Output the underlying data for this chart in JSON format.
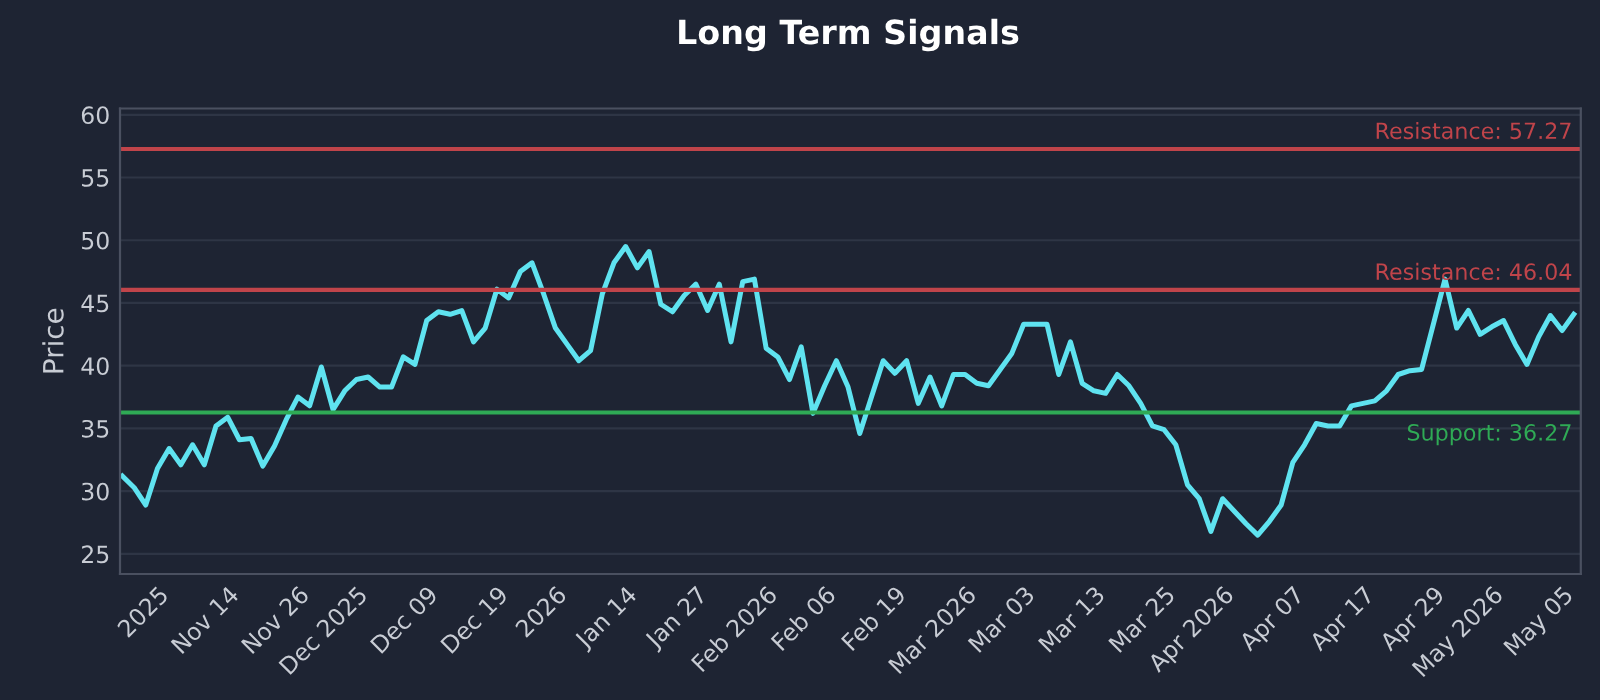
{
  "chart_data": {
    "type": "line",
    "title": "Long Term Signals",
    "ylabel": "Price",
    "categories": [
      null,
      null,
      null,
      "2025",
      null,
      null,
      null,
      null,
      null,
      "Nov 14",
      null,
      null,
      null,
      null,
      null,
      "Nov 26",
      null,
      null,
      null,
      null,
      "Dec 2025",
      null,
      null,
      null,
      null,
      null,
      "Dec 09",
      null,
      null,
      null,
      null,
      null,
      "Dec 19",
      null,
      null,
      null,
      null,
      "2026",
      null,
      null,
      null,
      null,
      null,
      "Jan 14",
      null,
      null,
      null,
      null,
      null,
      "Jan 27",
      null,
      null,
      null,
      null,
      null,
      "Feb 2026",
      null,
      null,
      null,
      null,
      "Feb 06",
      null,
      null,
      null,
      null,
      null,
      "Feb 19",
      null,
      null,
      null,
      null,
      null,
      "Mar 2026",
      null,
      null,
      null,
      null,
      "Mar 03",
      null,
      null,
      null,
      null,
      null,
      "Mar 13",
      null,
      null,
      null,
      null,
      null,
      "Mar 25",
      null,
      null,
      null,
      null,
      "Apr 2026",
      null,
      null,
      null,
      null,
      null,
      "Apr 07",
      null,
      null,
      null,
      null,
      null,
      "Apr 17",
      null,
      null,
      null,
      null,
      null,
      "Apr 29",
      null,
      null,
      null,
      null,
      "May 2026",
      null,
      null,
      null,
      null,
      null,
      "May 05",
      null
    ],
    "series": [
      {
        "color": "#5fe3f0",
        "values": [
          31.2,
          30.3,
          28.9,
          31.8,
          33.4,
          32.1,
          33.7,
          32.1,
          35.2,
          35.9,
          34.1,
          34.2,
          32.0,
          33.6,
          35.7,
          37.5,
          36.8,
          39.9,
          36.5,
          38.0,
          38.9,
          39.1,
          38.3,
          38.3,
          40.7,
          40.1,
          43.6,
          44.3,
          44.1,
          44.4,
          41.9,
          43.0,
          46.1,
          45.4,
          47.5,
          48.2,
          45.7,
          43.0,
          41.7,
          40.4,
          41.2,
          45.7,
          48.2,
          49.5,
          47.8,
          49.1,
          44.9,
          44.3,
          45.6,
          46.5,
          44.4,
          46.5,
          41.9,
          46.7,
          46.9,
          41.4,
          40.7,
          38.9,
          41.5,
          36.2,
          38.4,
          40.4,
          38.3,
          34.6,
          37.5,
          40.4,
          39.4,
          40.4,
          37.0,
          39.1,
          36.8,
          39.3,
          39.3,
          38.6,
          38.4,
          39.7,
          41.0,
          43.3,
          43.3,
          43.3,
          39.3,
          41.9,
          38.6,
          38.0,
          37.8,
          39.3,
          38.4,
          37.0,
          35.2,
          34.9,
          33.7,
          30.5,
          29.4,
          26.8,
          29.4,
          28.4,
          27.4,
          26.5,
          27.6,
          28.9,
          32.3,
          33.7,
          35.4,
          35.2,
          35.2,
          36.8,
          37.0,
          37.2,
          38.0,
          39.3,
          39.6,
          39.7,
          43.3,
          46.9,
          43.0,
          44.4,
          42.5,
          43.1,
          43.6,
          41.7,
          40.1,
          42.3,
          44.0,
          42.8,
          44.1
        ]
      }
    ],
    "ylim": [
      23.4,
      60.5
    ],
    "yticks": [
      25,
      30,
      35,
      40,
      45,
      50,
      55,
      60
    ],
    "grid": "y",
    "ref_lines": [
      {
        "axis": "y",
        "value": 57.27,
        "label": "Resistance: 57.27",
        "color": "#c0444a"
      },
      {
        "axis": "y",
        "value": 46.04,
        "label": "Resistance: 46.04",
        "color": "#c0444a"
      },
      {
        "axis": "y",
        "value": 36.27,
        "label": "Support: 36.27",
        "color": "#2faa55"
      }
    ]
  }
}
